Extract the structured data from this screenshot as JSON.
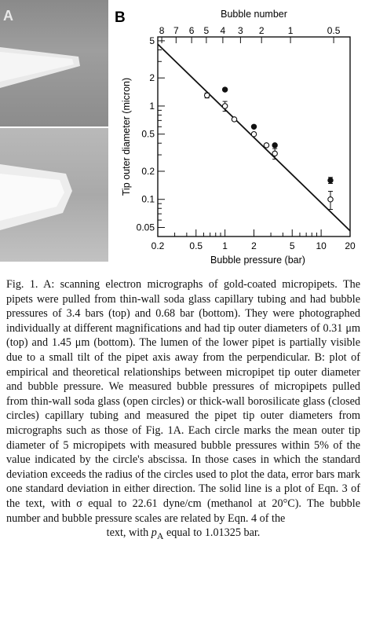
{
  "panel_a": {
    "label": "A"
  },
  "chart_data": {
    "type": "scatter",
    "panel_label": "B",
    "xscale": "log",
    "yscale": "log",
    "xlim": [
      0.2,
      20
    ],
    "ylim": [
      0.04,
      5.5
    ],
    "xlabel": "Bubble pressure (bar)",
    "ylabel": "Tip outer diameter (micron)",
    "top_axis_label": "Bubble number",
    "x_tick_labels": [
      "0.2",
      "0.5",
      "1",
      "2",
      "5",
      "10",
      "20"
    ],
    "y_tick_labels": [
      "5",
      "2",
      "1",
      "0.5",
      "0.2",
      "0.1",
      "0.05"
    ],
    "top_tick_labels": [
      "8",
      "7",
      "6",
      "5",
      "4",
      "3",
      "2",
      "1",
      "0.5"
    ],
    "top_tick_positions_bar": [
      0.22,
      0.31,
      0.45,
      0.64,
      0.95,
      1.45,
      2.4,
      4.8,
      13.5
    ],
    "line": {
      "x": [
        0.2,
        20
      ],
      "y": [
        4.6,
        0.046
      ]
    },
    "series": [
      {
        "marker": "open",
        "x": [
          0.65,
          1.0,
          1.25,
          2.0,
          2.7,
          3.3,
          12.5
        ],
        "y": [
          1.3,
          1.0,
          0.72,
          0.5,
          0.38,
          0.31,
          0.1
        ],
        "yerr": [
          0.08,
          0.12,
          0,
          0,
          0,
          0.04,
          0.022
        ]
      },
      {
        "marker": "filled",
        "x": [
          1.0,
          2.0,
          3.3,
          12.5
        ],
        "y": [
          1.5,
          0.6,
          0.38,
          0.16
        ],
        "yerr": [
          0,
          0,
          0,
          0.012
        ]
      }
    ]
  },
  "caption": {
    "paragraph": "Fig. 1. A: scanning electron micrographs of gold-coated micropipets. The pipets were pulled from thin-wall soda glass capillary tubing and had bubble pressures of 3.4 bars (top) and 0.68 bar (bottom). They were photographed individually at different magnifications and had tip outer diameters of 0.31 μm (top) and 1.45 μm (bottom). The lumen of the lower pipet is partially visible due to a small tilt of the pipet axis away from the perpendicular. B: plot of empirical and theoretical relationships between micropipet tip outer diameter and bubble pressure. We measured bubble pressures of micropipets pulled from thin-wall soda glass (open circles) or thick-wall borosilicate glass (closed circles) capillary tubing and measured the pipet tip outer diameters from micrographs such as those of Fig. 1A. Each circle marks the mean outer tip diameter of 5 micropipets with measured bubble pressures within 5% of the value indicated by the circle's abscissa. In those cases in which the standard deviation exceeds the radius of the circles used to plot the data, error bars mark one standard deviation in either direction. The solid line is a plot of Eqn. 3 of the text, with σ equal to 22.61 dyne/cm (methanol at 20°C). The bubble number and bubble pressure scales are related by Eqn. 4 of the",
    "last_line": "text, with pA equal to 1.01325 bar."
  }
}
